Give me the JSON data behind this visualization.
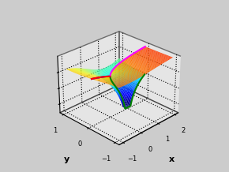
{
  "xlabel": "x",
  "ylabel": "y",
  "x_ticks": [
    -1,
    0,
    1,
    2
  ],
  "y_ticks": [
    -1,
    0,
    1
  ],
  "background_color": "#cccccc",
  "elev": 28,
  "azim": -135,
  "N": 60,
  "x_min": -1.0,
  "x_max": 2.0,
  "y_min": -1.0,
  "y_max": 1.0,
  "vmin": -2.5,
  "vmax": 1.5
}
